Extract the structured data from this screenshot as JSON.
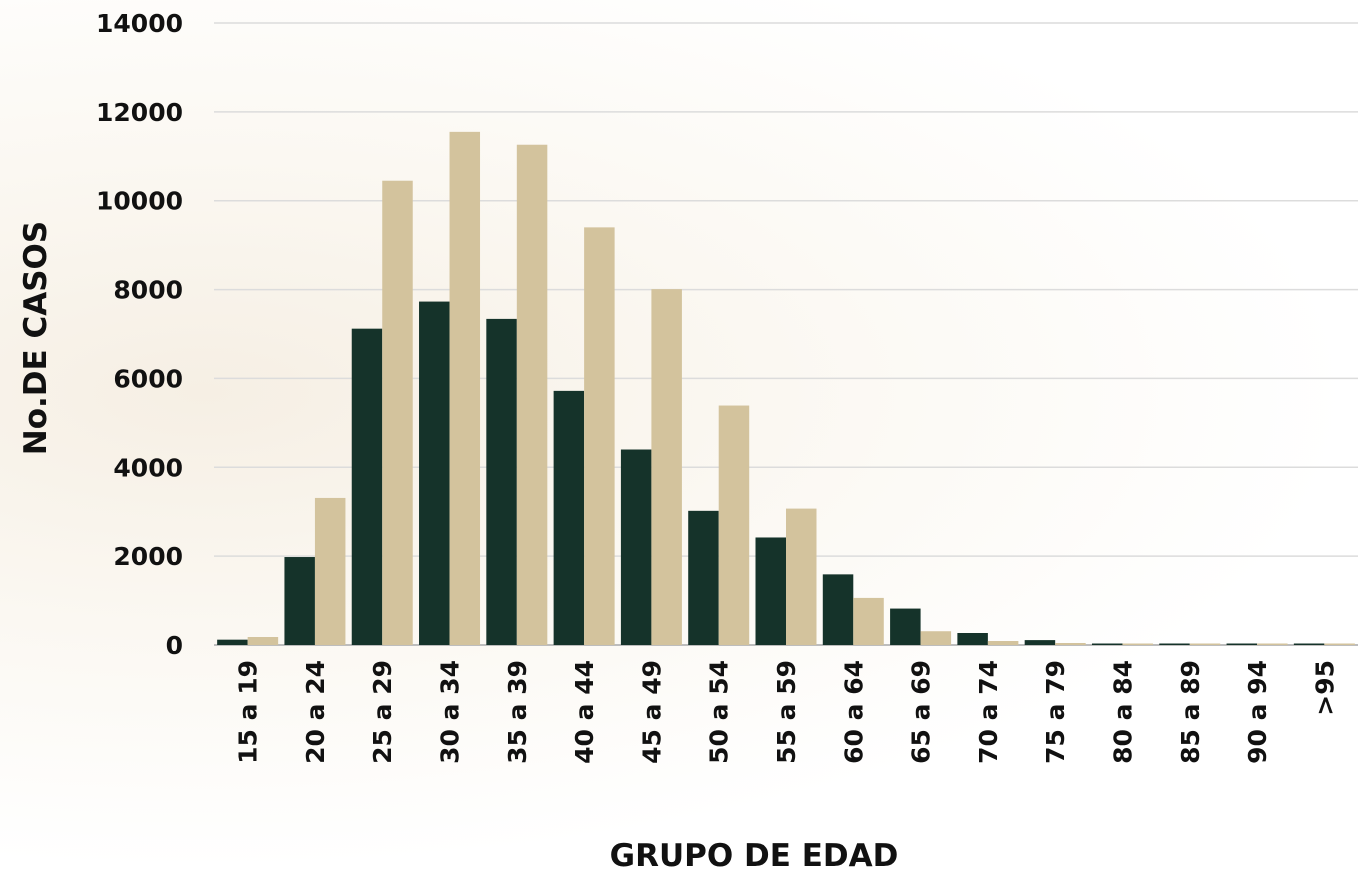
{
  "chart_data": {
    "type": "bar",
    "xlabel": "GRUPO DE EDAD",
    "ylabel": "No.DE CASOS",
    "ylim": [
      0,
      14000
    ],
    "yticks": [
      0,
      2000,
      4000,
      6000,
      8000,
      10000,
      12000,
      14000
    ],
    "grid": true,
    "legend": "none",
    "categories": [
      "15 a 19",
      "20 a 24",
      "25 a 29",
      "30 a 34",
      "35 a 39",
      "40 a 44",
      "45 a 49",
      "50 a 54",
      "55 a 59",
      "60 a 64",
      "65 a 69",
      "70 a 74",
      "75 a 79",
      "80 a 84",
      "85 a 89",
      "90 a 94",
      ">95"
    ],
    "series": [
      {
        "color": "#15332a",
        "values": [
          120,
          1980,
          7120,
          7730,
          7340,
          5720,
          4400,
          3020,
          2420,
          1590,
          820,
          270,
          110,
          30,
          15,
          10,
          5
        ]
      },
      {
        "color": "#d3c39d",
        "values": [
          180,
          3310,
          10450,
          11550,
          11260,
          9400,
          8010,
          5390,
          3070,
          1060,
          310,
          90,
          45,
          15,
          10,
          5,
          2
        ]
      }
    ]
  }
}
